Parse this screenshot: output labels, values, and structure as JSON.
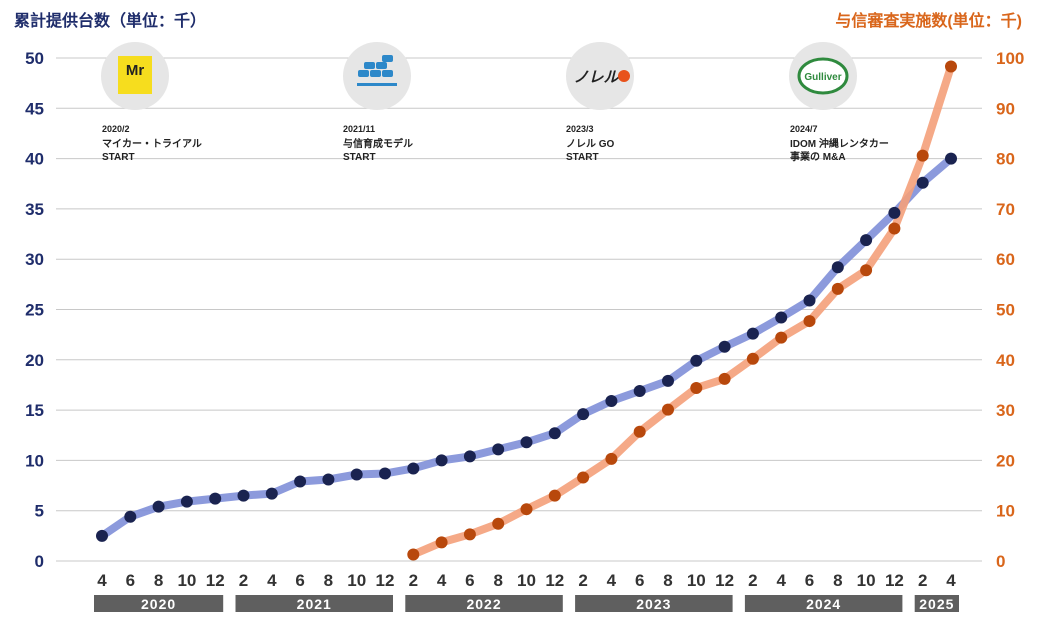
{
  "chart_data": {
    "type": "line",
    "left_axis": {
      "label": "累計提供台数（単位：千）",
      "ticks": [
        "0",
        "5",
        "10",
        "15",
        "20",
        "25",
        "30",
        "35",
        "40",
        "45",
        "50"
      ],
      "min": 0,
      "max": 50
    },
    "right_axis": {
      "label": "与信審査実施数(単位：千)",
      "ticks": [
        "0",
        "10",
        "20",
        "30",
        "40",
        "50",
        "60",
        "70",
        "80",
        "90",
        "100"
      ],
      "min": 0,
      "max": 100
    },
    "x_tick_labels": [
      "4",
      "6",
      "8",
      "10",
      "12",
      "2",
      "4",
      "6",
      "8",
      "10",
      "12",
      "2",
      "4",
      "6",
      "8",
      "10",
      "12",
      "2",
      "4",
      "6",
      "8",
      "10",
      "12",
      "2",
      "4",
      "6",
      "8",
      "10",
      "12",
      "2",
      "4"
    ],
    "years": [
      {
        "label": "2020",
        "first": 0,
        "last": 4
      },
      {
        "label": "2021",
        "first": 5,
        "last": 10
      },
      {
        "label": "2022",
        "first": 11,
        "last": 16
      },
      {
        "label": "2023",
        "first": 17,
        "last": 22
      },
      {
        "label": "2024",
        "first": 23,
        "last": 28
      },
      {
        "label": "2025",
        "first": 29,
        "last": 30
      }
    ],
    "series": [
      {
        "axis": "left",
        "color": "#1a2350",
        "line_color": "#7f8fd8",
        "start_index": 0,
        "values": [
          2.5,
          4.4,
          5.4,
          5.9,
          6.2,
          6.5,
          6.7,
          7.9,
          8.1,
          8.6,
          8.7,
          9.2,
          10.0,
          10.4,
          11.1,
          11.8,
          12.7,
          14.6,
          15.9,
          16.9,
          17.9,
          19.9,
          21.3,
          22.6,
          24.2,
          25.9,
          29.2,
          31.9,
          34.6,
          37.6,
          40.0
        ]
      },
      {
        "axis": "right",
        "color": "#b8480c",
        "line_color": "#f4a07a",
        "start_index": 11,
        "values": [
          1.3,
          3.7,
          5.3,
          7.4,
          10.3,
          13.0,
          16.6,
          20.3,
          25.7,
          30.1,
          34.4,
          36.2,
          40.2,
          44.4,
          47.7,
          54.1,
          57.8,
          66.1,
          80.6,
          98.3
        ]
      }
    ],
    "events": [
      {
        "date": "2020/2",
        "line1": "マイカー・トライアル",
        "line2": "START",
        "logo_text": "Mr"
      },
      {
        "date": "2021/11",
        "line1": "与信育成モデル",
        "line2": "START",
        "logo_text": ""
      },
      {
        "date": "2023/3",
        "line1": "ノレル GO",
        "line2": "START",
        "logo_text": "ノレル"
      },
      {
        "date": "2024/7",
        "line1": "IDOM 沖縄レンタカー",
        "line2": "事業の M&A",
        "logo_text": "Gulliver"
      }
    ]
  }
}
